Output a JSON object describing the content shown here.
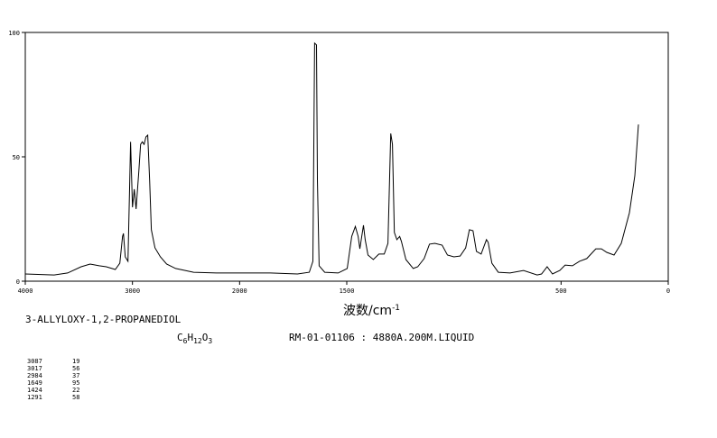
{
  "chart_data": {
    "type": "line",
    "title": "3-ALLYLOXY-1,2-PROPANEDIOL",
    "formula_parts": [
      "C",
      "6",
      "H",
      "12",
      "O",
      "3"
    ],
    "sample_info": "RM-01-01106 : 4880A.200M.LIQUID",
    "x_label": "波数/cm",
    "x_label_sup": "-1",
    "x": [
      4000,
      3731,
      3605,
      3479,
      3395,
      3311,
      3244,
      3160,
      3118,
      3092,
      3084,
      3067,
      3042,
      3025,
      3017,
      3000,
      2983,
      2966,
      2941,
      2924,
      2908,
      2891,
      2874,
      2857,
      2840,
      2824,
      2790,
      2739,
      2681,
      2597,
      2429,
      2218,
      2000,
      1857,
      1730,
      1675,
      1658,
      1650,
      1641,
      1637,
      1629,
      1603,
      1540,
      1498,
      1477,
      1460,
      1447,
      1439,
      1430,
      1422,
      1414,
      1401,
      1376,
      1350,
      1325,
      1308,
      1295,
      1287,
      1278,
      1266,
      1253,
      1245,
      1224,
      1190,
      1169,
      1139,
      1114,
      1089,
      1055,
      1030,
      1000,
      971,
      945,
      928,
      911,
      895,
      873,
      848,
      840,
      823,
      793,
      738,
      675,
      612,
      591,
      565,
      540,
      506,
      481,
      447,
      414,
      380,
      338,
      312,
      287,
      253,
      219,
      181,
      156,
      139
    ],
    "values": [
      2.9,
      2.5,
      3.3,
      5.8,
      6.9,
      6.2,
      5.8,
      4.7,
      7.2,
      18,
      19.2,
      9.8,
      8,
      40.6,
      56,
      29.7,
      37,
      29,
      44,
      55,
      56,
      55,
      58,
      58.7,
      40.6,
      20.7,
      13.4,
      9.8,
      6.9,
      5.1,
      3.6,
      3.3,
      3.3,
      3.3,
      2.9,
      3.6,
      8,
      95.7,
      95,
      40.6,
      6.2,
      3.6,
      3.3,
      5.1,
      18,
      22,
      18,
      13,
      18,
      22.5,
      16.7,
      10.5,
      8.7,
      10.9,
      10.9,
      15.2,
      59.4,
      55,
      19.6,
      16.7,
      18,
      16,
      8.7,
      5.1,
      5.8,
      9.1,
      14.9,
      15.2,
      14.5,
      10.5,
      9.8,
      10.1,
      13.4,
      20.7,
      20.3,
      12,
      10.9,
      16.7,
      15.6,
      7.2,
      3.6,
      3.3,
      4.3,
      2.5,
      2.9,
      5.8,
      2.9,
      4.3,
      6.5,
      6.2,
      8,
      9.1,
      13,
      13,
      11.6,
      10.5,
      15.2,
      27.5,
      42.4,
      63
    ],
    "color": "#000000",
    "xlim": [
      4000,
      0
    ],
    "x_break": 2000,
    "x_break_expand": 2,
    "xticks": [
      4000,
      3000,
      2000,
      1500,
      500,
      0
    ],
    "ylim": [
      0,
      100
    ],
    "yticks": [
      0,
      50,
      100
    ],
    "peak_table": [
      [
        3087,
        19
      ],
      [
        3017,
        56
      ],
      [
        2984,
        37
      ],
      [
        1649,
        95
      ],
      [
        1424,
        22
      ],
      [
        1291,
        58
      ]
    ]
  }
}
